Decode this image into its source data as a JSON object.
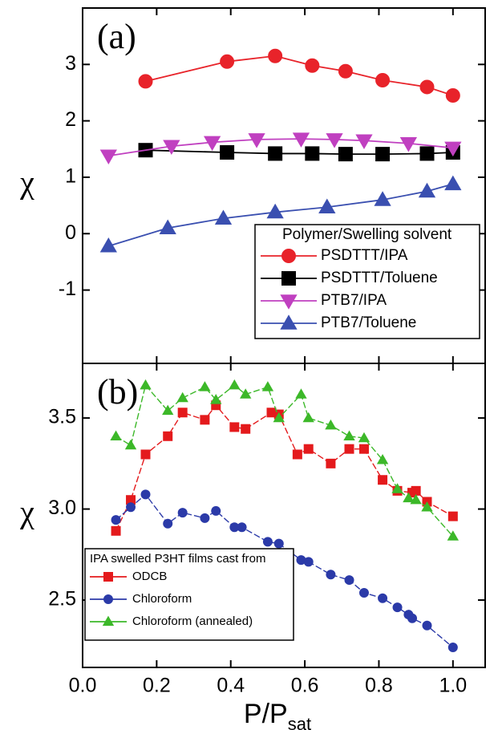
{
  "chart_data": [
    {
      "type": "line",
      "panel_label": "(a)",
      "y_label": "χ",
      "xlim": [
        0,
        1.087
      ],
      "ylim": [
        -2.3,
        4
      ],
      "yticks": [
        -1,
        0,
        1,
        2,
        3
      ],
      "legend_title": "Polymer/Swelling solvent",
      "legend": "lower right",
      "series": [
        {
          "name": "PSDTTT/IPA",
          "color": "#e8232a",
          "marker": "circle",
          "x": [
            0.17,
            0.39,
            0.52,
            0.62,
            0.71,
            0.81,
            0.93,
            1.0
          ],
          "values": [
            2.7,
            3.05,
            3.15,
            2.98,
            2.88,
            2.72,
            2.6,
            2.45
          ]
        },
        {
          "name": "PSDTTT/Toluene",
          "color": "#000000",
          "marker": "square",
          "x": [
            0.17,
            0.39,
            0.52,
            0.62,
            0.71,
            0.81,
            0.93,
            1.0
          ],
          "values": [
            1.48,
            1.44,
            1.42,
            1.42,
            1.41,
            1.41,
            1.42,
            1.44
          ]
        },
        {
          "name": "PTB7/IPA",
          "color": "#c040c0",
          "marker": "triangle-down",
          "x": [
            0.07,
            0.24,
            0.35,
            0.47,
            0.59,
            0.68,
            0.76,
            0.88,
            1.0
          ],
          "values": [
            1.38,
            1.55,
            1.62,
            1.67,
            1.68,
            1.67,
            1.65,
            1.6,
            1.52
          ]
        },
        {
          "name": "PTB7/Toluene",
          "color": "#3a4fb0",
          "marker": "triangle",
          "x": [
            0.07,
            0.23,
            0.38,
            0.52,
            0.66,
            0.81,
            0.93,
            1.0
          ],
          "values": [
            -0.22,
            0.1,
            0.27,
            0.38,
            0.47,
            0.6,
            0.75,
            0.88
          ]
        }
      ]
    },
    {
      "type": "line",
      "panel_label": "(b)",
      "y_label": "χ",
      "x_label": {
        "main": "P/P",
        "sub": "sat"
      },
      "xlim": [
        0,
        1.087
      ],
      "xticks": [
        {
          "value": 0,
          "label": "0.0"
        },
        {
          "value": 0.2,
          "label": "0.2"
        },
        {
          "value": 0.4,
          "label": "0.4"
        },
        {
          "value": 0.6,
          "label": "0.6"
        },
        {
          "value": 0.8,
          "label": "0.8"
        },
        {
          "value": 1,
          "label": "1.0"
        }
      ],
      "ylim": [
        2.13,
        3.8
      ],
      "yticks": [
        2.5,
        {
          "value": 3,
          "label": "3.0"
        },
        3.5
      ],
      "legend_title": "IPA swelled P3HT films cast from",
      "legend": "lower left",
      "series": [
        {
          "name": "ODCB",
          "color": "#e41a1c",
          "marker": "square",
          "x": [
            0.09,
            0.13,
            0.17,
            0.23,
            0.27,
            0.33,
            0.36,
            0.41,
            0.44,
            0.51,
            0.53,
            0.58,
            0.61,
            0.67,
            0.72,
            0.76,
            0.81,
            0.85,
            0.89,
            0.9,
            0.93,
            1.0
          ],
          "values": [
            2.88,
            3.05,
            3.3,
            3.4,
            3.53,
            3.49,
            3.57,
            3.45,
            3.44,
            3.53,
            3.52,
            3.3,
            3.33,
            3.25,
            3.33,
            3.33,
            3.16,
            3.1,
            3.09,
            3.1,
            3.04,
            2.96
          ]
        },
        {
          "name": "Chloroform",
          "color": "#2b3aa8",
          "marker": "circle",
          "x": [
            0.09,
            0.13,
            0.17,
            0.23,
            0.27,
            0.33,
            0.36,
            0.41,
            0.43,
            0.5,
            0.53,
            0.59,
            0.61,
            0.67,
            0.72,
            0.76,
            0.81,
            0.85,
            0.88,
            0.89,
            0.93,
            1.0
          ],
          "values": [
            2.94,
            3.01,
            3.08,
            2.92,
            2.98,
            2.95,
            2.99,
            2.9,
            2.9,
            2.82,
            2.81,
            2.72,
            2.71,
            2.64,
            2.61,
            2.54,
            2.51,
            2.46,
            2.42,
            2.4,
            2.36,
            2.24
          ]
        },
        {
          "name": "Chloroform (annealed)",
          "color": "#3cb829",
          "marker": "triangle",
          "x": [
            0.09,
            0.13,
            0.17,
            0.23,
            0.27,
            0.33,
            0.36,
            0.41,
            0.44,
            0.5,
            0.53,
            0.59,
            0.61,
            0.67,
            0.72,
            0.76,
            0.81,
            0.85,
            0.88,
            0.9,
            0.93,
            1.0
          ],
          "values": [
            3.4,
            3.35,
            3.68,
            3.54,
            3.61,
            3.67,
            3.6,
            3.68,
            3.63,
            3.67,
            3.5,
            3.63,
            3.5,
            3.46,
            3.4,
            3.39,
            3.27,
            3.11,
            3.06,
            3.05,
            3.01,
            2.85
          ]
        }
      ]
    }
  ]
}
